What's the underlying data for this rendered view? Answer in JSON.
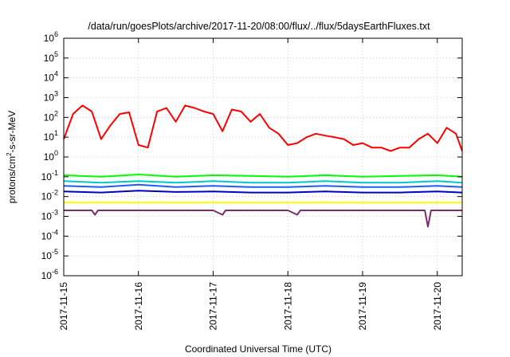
{
  "chart_data": {
    "type": "line",
    "title": "/data/run/goesPlots/archive/2017-11-20/08:00/flux/../flux/5daysEarthFluxes.txt",
    "xlabel": "Coordinated Universal Time (UTC)",
    "ylabel_parts": [
      "protons/cm",
      "2",
      "-s-sr-MeV"
    ],
    "y_scale": "log",
    "ylim": [
      1e-06,
      1000000.0
    ],
    "y_ticks": [
      {
        "base": "10",
        "exp": "-6",
        "value": 1e-06
      },
      {
        "base": "10",
        "exp": "-5",
        "value": 1e-05
      },
      {
        "base": "10",
        "exp": "-4",
        "value": 0.0001
      },
      {
        "base": "10",
        "exp": "-3",
        "value": 0.001
      },
      {
        "base": "10",
        "exp": "-2",
        "value": 0.01
      },
      {
        "base": "10",
        "exp": "-1",
        "value": 0.1
      },
      {
        "base": "10",
        "exp": "0",
        "value": 1
      },
      {
        "base": "10",
        "exp": "1",
        "value": 10
      },
      {
        "base": "10",
        "exp": "2",
        "value": 100
      },
      {
        "base": "10",
        "exp": "3",
        "value": 1000
      },
      {
        "base": "10",
        "exp": "4",
        "value": 10000
      },
      {
        "base": "10",
        "exp": "5",
        "value": 100000
      },
      {
        "base": "10",
        "exp": "6",
        "value": 1000000
      }
    ],
    "x_ticks": [
      "2017-11-15",
      "2017-11-16",
      "2017-11-17",
      "2017-11-18",
      "2017-11-19",
      "2017-11-20"
    ],
    "xlim": [
      "2017-11-15T00:00",
      "2017-11-20T08:00"
    ],
    "grid": true,
    "legend": "none",
    "series": [
      {
        "color": "#ff0000",
        "x": [
          "2017-11-15T00:00",
          "2017-11-15T03:00",
          "2017-11-15T06:00",
          "2017-11-15T09:00",
          "2017-11-15T12:00",
          "2017-11-15T15:00",
          "2017-11-15T18:00",
          "2017-11-15T21:00",
          "2017-11-16T00:00",
          "2017-11-16T03:00",
          "2017-11-16T06:00",
          "2017-11-16T09:00",
          "2017-11-16T12:00",
          "2017-11-16T15:00",
          "2017-11-16T18:00",
          "2017-11-16T21:00",
          "2017-11-17T00:00",
          "2017-11-17T03:00",
          "2017-11-17T06:00",
          "2017-11-17T09:00",
          "2017-11-17T12:00",
          "2017-11-17T15:00",
          "2017-11-17T18:00",
          "2017-11-17T21:00",
          "2017-11-18T00:00",
          "2017-11-18T03:00",
          "2017-11-18T06:00",
          "2017-11-18T09:00",
          "2017-11-18T12:00",
          "2017-11-18T15:00",
          "2017-11-18T18:00",
          "2017-11-18T21:00",
          "2017-11-19T00:00",
          "2017-11-19T03:00",
          "2017-11-19T06:00",
          "2017-11-19T09:00",
          "2017-11-19T12:00",
          "2017-11-19T15:00",
          "2017-11-19T18:00",
          "2017-11-19T21:00",
          "2017-11-20T00:00",
          "2017-11-20T03:00",
          "2017-11-20T06:00",
          "2017-11-20T08:00"
        ],
        "y": [
          8,
          150,
          400,
          200,
          8,
          40,
          150,
          180,
          4,
          3,
          200,
          300,
          60,
          400,
          300,
          200,
          150,
          20,
          250,
          200,
          60,
          150,
          30,
          15,
          4,
          5,
          10,
          15,
          12,
          10,
          8,
          4,
          5,
          3,
          3,
          2,
          3,
          3,
          8,
          15,
          5,
          30,
          15,
          2
        ]
      },
      {
        "color": "#00ff00",
        "x": [
          "2017-11-15T00:00",
          "2017-11-15T12:00",
          "2017-11-16T00:00",
          "2017-11-16T12:00",
          "2017-11-17T00:00",
          "2017-11-17T12:00",
          "2017-11-18T00:00",
          "2017-11-18T12:00",
          "2017-11-19T00:00",
          "2017-11-19T12:00",
          "2017-11-20T00:00",
          "2017-11-20T08:00"
        ],
        "y": [
          0.12,
          0.1,
          0.13,
          0.1,
          0.12,
          0.11,
          0.1,
          0.12,
          0.1,
          0.11,
          0.12,
          0.1
        ]
      },
      {
        "color": "#00c8c8",
        "x": [
          "2017-11-15T00:00",
          "2017-11-15T12:00",
          "2017-11-16T00:00",
          "2017-11-16T12:00",
          "2017-11-17T00:00",
          "2017-11-17T12:00",
          "2017-11-18T00:00",
          "2017-11-18T12:00",
          "2017-11-19T00:00",
          "2017-11-19T12:00",
          "2017-11-20T00:00",
          "2017-11-20T08:00"
        ],
        "y": [
          0.06,
          0.05,
          0.06,
          0.05,
          0.06,
          0.05,
          0.05,
          0.06,
          0.05,
          0.05,
          0.06,
          0.05
        ]
      },
      {
        "color": "#1e5aff",
        "x": [
          "2017-11-15T00:00",
          "2017-11-15T12:00",
          "2017-11-16T00:00",
          "2017-11-16T12:00",
          "2017-11-17T00:00",
          "2017-11-17T12:00",
          "2017-11-18T00:00",
          "2017-11-18T12:00",
          "2017-11-19T00:00",
          "2017-11-19T12:00",
          "2017-11-20T00:00",
          "2017-11-20T08:00"
        ],
        "y": [
          0.035,
          0.03,
          0.04,
          0.03,
          0.035,
          0.03,
          0.03,
          0.035,
          0.03,
          0.03,
          0.035,
          0.03
        ]
      },
      {
        "color": "#0000c0",
        "x": [
          "2017-11-15T00:00",
          "2017-11-15T12:00",
          "2017-11-16T00:00",
          "2017-11-16T12:00",
          "2017-11-17T00:00",
          "2017-11-17T12:00",
          "2017-11-18T00:00",
          "2017-11-18T12:00",
          "2017-11-19T00:00",
          "2017-11-19T12:00",
          "2017-11-20T00:00",
          "2017-11-20T08:00"
        ],
        "y": [
          0.018,
          0.016,
          0.02,
          0.017,
          0.018,
          0.016,
          0.016,
          0.018,
          0.016,
          0.016,
          0.018,
          0.016
        ]
      },
      {
        "color": "#ffff00",
        "x": [
          "2017-11-15T00:00",
          "2017-11-15T12:00",
          "2017-11-16T00:00",
          "2017-11-16T12:00",
          "2017-11-17T00:00",
          "2017-11-17T12:00",
          "2017-11-18T00:00",
          "2017-11-18T12:00",
          "2017-11-19T00:00",
          "2017-11-19T12:00",
          "2017-11-20T00:00",
          "2017-11-20T08:00"
        ],
        "y": [
          0.005,
          0.005,
          0.005,
          0.005,
          0.005,
          0.005,
          0.005,
          0.005,
          0.005,
          0.005,
          0.005,
          0.005
        ]
      },
      {
        "color": "#7b2c6e",
        "x": [
          "2017-11-15T00:00",
          "2017-11-15T09:00",
          "2017-11-15T10:00",
          "2017-11-15T11:00",
          "2017-11-16T00:00",
          "2017-11-17T00:00",
          "2017-11-17T03:00",
          "2017-11-17T04:00",
          "2017-11-18T00:00",
          "2017-11-18T03:00",
          "2017-11-18T04:00",
          "2017-11-19T00:00",
          "2017-11-19T20:00",
          "2017-11-19T21:00",
          "2017-11-19T22:00",
          "2017-11-20T08:00"
        ],
        "y": [
          0.002,
          0.002,
          0.0012,
          0.002,
          0.002,
          0.002,
          0.0012,
          0.002,
          0.002,
          0.0012,
          0.002,
          0.002,
          0.002,
          0.0003,
          0.002,
          0.002
        ]
      }
    ]
  }
}
